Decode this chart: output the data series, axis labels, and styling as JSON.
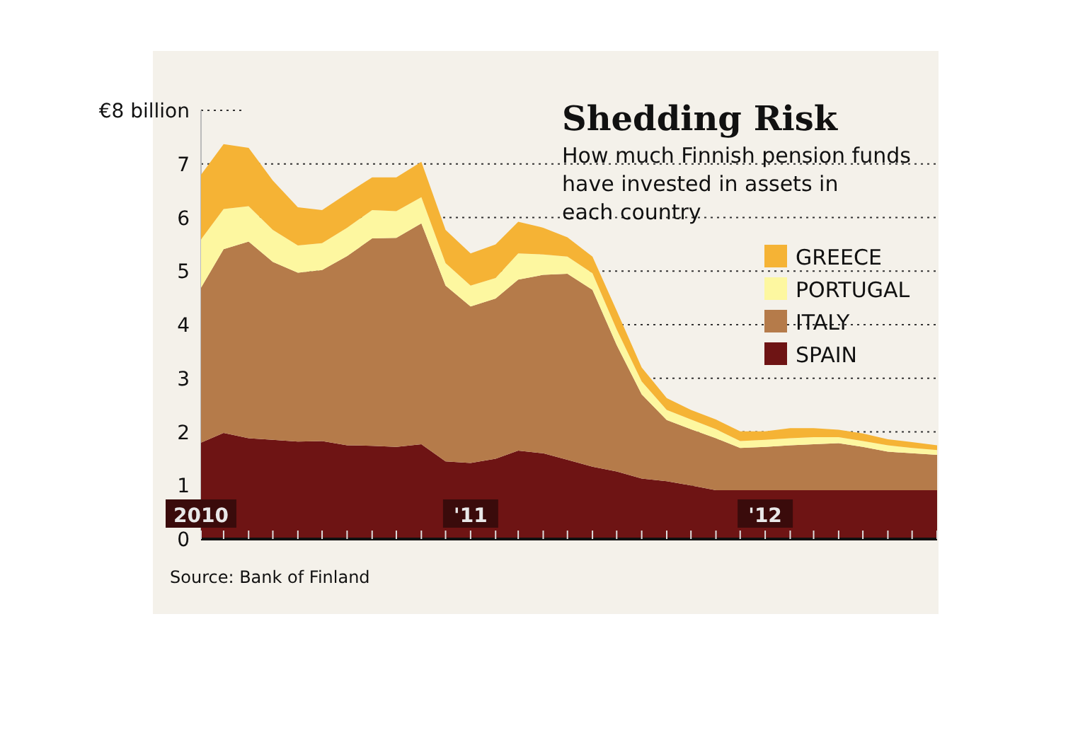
{
  "chart_data": {
    "type": "area",
    "stacked": true,
    "title": "Shedding Risk",
    "subtitle": "How much Finnish pension funds have invested in assets in each country",
    "x": [
      "2010-02",
      "2010-03",
      "2010-04",
      "2010-05",
      "2010-06",
      "2010-07",
      "2010-08",
      "2010-09",
      "2010-10",
      "2010-11",
      "2010-12",
      "2011-01",
      "2011-02",
      "2011-03",
      "2011-04",
      "2011-05",
      "2011-06",
      "2011-07",
      "2011-08",
      "2011-09",
      "2011-10",
      "2011-11",
      "2011-12",
      "2012-01",
      "2012-02",
      "2012-03",
      "2012-04",
      "2012-05",
      "2012-06",
      "2012-07",
      "2012-08"
    ],
    "series": [
      {
        "name": "SPAIN",
        "color": "#6e1414",
        "values": [
          1.8,
          1.98,
          1.88,
          1.85,
          1.82,
          1.83,
          1.75,
          1.74,
          1.72,
          1.77,
          1.45,
          1.42,
          1.5,
          1.65,
          1.6,
          1.48,
          1.35,
          1.26,
          1.13,
          1.08,
          1.0,
          0.91,
          0.91,
          0.91,
          0.91,
          0.91,
          0.91,
          0.91,
          0.91,
          0.91,
          0.91
        ]
      },
      {
        "name": "ITALY",
        "color": "#b57b4a",
        "values": [
          2.89,
          3.43,
          3.67,
          3.32,
          3.15,
          3.19,
          3.53,
          3.87,
          3.9,
          4.12,
          3.28,
          2.92,
          2.99,
          3.19,
          3.33,
          3.47,
          3.3,
          2.36,
          1.57,
          1.14,
          1.05,
          0.97,
          0.79,
          0.81,
          0.84,
          0.86,
          0.88,
          0.81,
          0.72,
          0.69,
          0.66
        ]
      },
      {
        "name": "PORTUGAL",
        "color": "#fdf7a0",
        "values": [
          0.9,
          0.75,
          0.66,
          0.6,
          0.51,
          0.5,
          0.53,
          0.53,
          0.5,
          0.49,
          0.42,
          0.39,
          0.38,
          0.49,
          0.38,
          0.32,
          0.31,
          0.29,
          0.24,
          0.19,
          0.18,
          0.17,
          0.13,
          0.13,
          0.13,
          0.13,
          0.11,
          0.11,
          0.12,
          0.1,
          0.09
        ]
      },
      {
        "name": "GREECE",
        "color": "#f5b335",
        "values": [
          1.21,
          1.21,
          1.09,
          0.92,
          0.71,
          0.62,
          0.64,
          0.61,
          0.63,
          0.66,
          0.62,
          0.6,
          0.63,
          0.59,
          0.5,
          0.36,
          0.31,
          0.35,
          0.26,
          0.22,
          0.18,
          0.18,
          0.18,
          0.16,
          0.19,
          0.17,
          0.14,
          0.14,
          0.11,
          0.11,
          0.09
        ]
      }
    ],
    "xlim": [
      "2010-02",
      "2012-08"
    ],
    "xticks": [
      {
        "value": "2010-02",
        "label": "2010"
      },
      {
        "value": "2010-03",
        "label": null
      },
      {
        "value": "2010-04",
        "label": null
      },
      {
        "value": "2010-05",
        "label": null
      },
      {
        "value": "2010-06",
        "label": null
      },
      {
        "value": "2010-07",
        "label": null
      },
      {
        "value": "2010-08",
        "label": null
      },
      {
        "value": "2010-09",
        "label": null
      },
      {
        "value": "2010-10",
        "label": null
      },
      {
        "value": "2010-11",
        "label": null
      },
      {
        "value": "2010-12",
        "label": null
      },
      {
        "value": "2011-01",
        "label": "'11"
      },
      {
        "value": "2011-02",
        "label": null
      },
      {
        "value": "2011-03",
        "label": null
      },
      {
        "value": "2011-04",
        "label": null
      },
      {
        "value": "2011-05",
        "label": null
      },
      {
        "value": "2011-06",
        "label": null
      },
      {
        "value": "2011-07",
        "label": null
      },
      {
        "value": "2011-08",
        "label": null
      },
      {
        "value": "2011-09",
        "label": null
      },
      {
        "value": "2011-10",
        "label": null
      },
      {
        "value": "2011-11",
        "label": null
      },
      {
        "value": "2011-12",
        "label": null
      },
      {
        "value": "2012-01",
        "label": "'12"
      },
      {
        "value": "2012-02",
        "label": null
      },
      {
        "value": "2012-03",
        "label": null
      },
      {
        "value": "2012-04",
        "label": null
      },
      {
        "value": "2012-05",
        "label": null
      },
      {
        "value": "2012-06",
        "label": null
      },
      {
        "value": "2012-07",
        "label": null
      },
      {
        "value": "2012-08",
        "label": null
      }
    ],
    "ylim": [
      0,
      8
    ],
    "yticks": [
      0,
      1,
      2,
      3,
      4,
      5,
      6,
      7,
      {
        "value": 8,
        "label": "€8 billion"
      }
    ],
    "grid": "y",
    "legend": "top right",
    "annotations": [
      "Source: Bank of Finland"
    ]
  }
}
